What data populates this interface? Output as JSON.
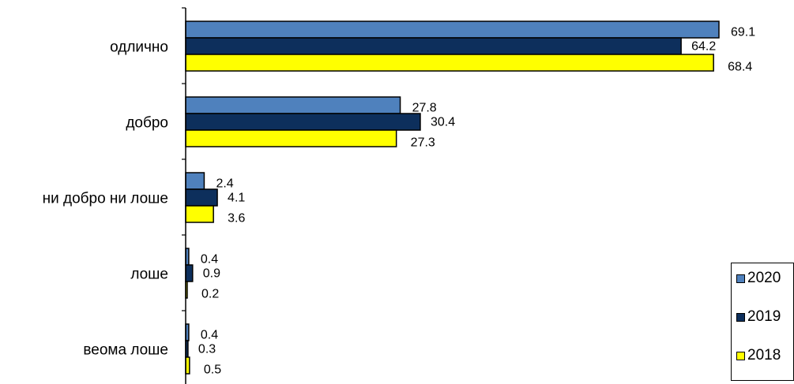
{
  "chart_data": {
    "type": "bar",
    "orientation": "horizontal",
    "title": "",
    "categories": [
      "одлично",
      "добро",
      "ни добро ни лоше",
      "лоше",
      "веома лоше"
    ],
    "series": [
      {
        "name": "2020",
        "color": "#4F81BD",
        "values": [
          69.1,
          27.8,
          2.4,
          0.4,
          0.4
        ]
      },
      {
        "name": "2019",
        "color": "#0D2F5C",
        "values": [
          64.2,
          30.4,
          4.1,
          0.9,
          0.3
        ]
      },
      {
        "name": "2018",
        "color": "#FFFF00",
        "values": [
          68.4,
          27.3,
          3.6,
          0.2,
          0.5
        ]
      }
    ],
    "xlim": [
      0,
      70
    ],
    "value_labels": [
      "69.1",
      "64.2",
      "68.4",
      "27.8",
      "30.4",
      "27.3",
      "2.4",
      "4.1",
      "3.6",
      "0.4",
      "0.9",
      "0.2",
      "0.4",
      "0.3",
      "0.5"
    ],
    "legend_position": "bottom-right"
  }
}
